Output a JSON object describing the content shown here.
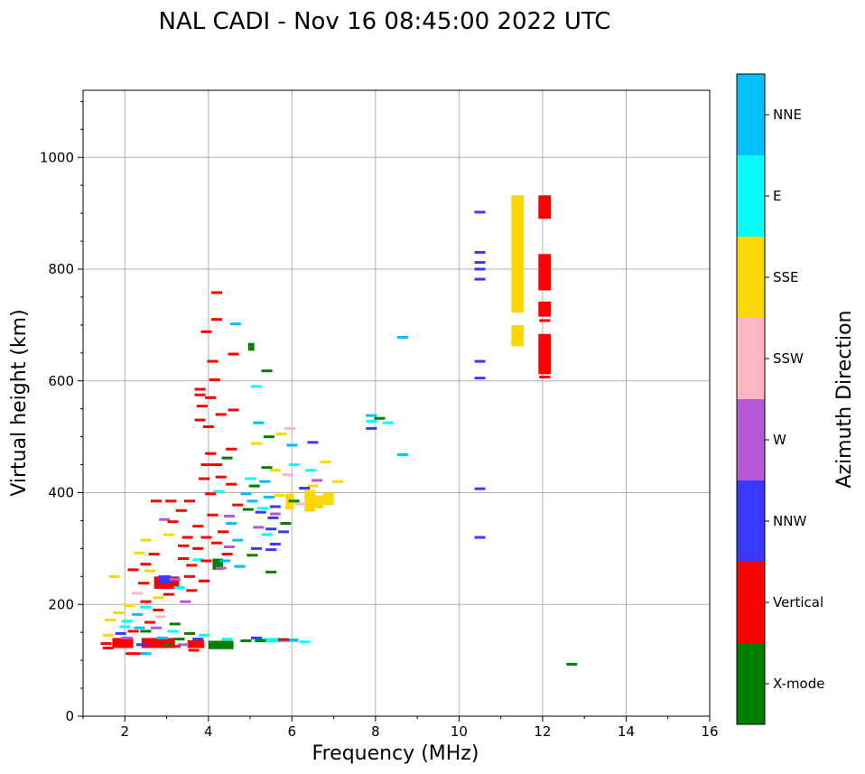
{
  "chart_data": {
    "type": "scatter",
    "title": "NAL CADI - Nov 16 08:45:00 2022 UTC",
    "xlabel": "Frequency (MHz)",
    "ylabel": "Virtual height (km)",
    "xlim": [
      1,
      16
    ],
    "ylim": [
      0,
      1120
    ],
    "xticks": [
      2,
      4,
      6,
      8,
      10,
      12,
      14,
      16
    ],
    "yticks": [
      0,
      200,
      400,
      600,
      800,
      1000
    ],
    "grid": true,
    "colorbar": {
      "title": "Azimuth Direction",
      "categories": [
        {
          "label": "X-mode",
          "color": "#008000"
        },
        {
          "label": "Vertical",
          "color": "#ff0000"
        },
        {
          "label": "NNW",
          "color": "#3a3aff"
        },
        {
          "label": "W",
          "color": "#b657d6"
        },
        {
          "label": "SSW",
          "color": "#ffb6c1"
        },
        {
          "label": "SSE",
          "color": "#ffd700"
        },
        {
          "label": "E",
          "color": "#00ffff"
        },
        {
          "label": "NNE",
          "color": "#00bfff"
        }
      ]
    },
    "blocks": [
      {
        "dir": "SSE",
        "x": [
          11.25,
          11.55
        ],
        "y": [
          722,
          932
        ]
      },
      {
        "dir": "SSE",
        "x": [
          11.25,
          11.55
        ],
        "y": [
          662,
          700
        ]
      },
      {
        "dir": "Vertical",
        "x": [
          11.9,
          12.2
        ],
        "y": [
          890,
          932
        ]
      },
      {
        "dir": "Vertical",
        "x": [
          11.9,
          12.2
        ],
        "y": [
          762,
          827
        ]
      },
      {
        "dir": "Vertical",
        "x": [
          11.9,
          12.2
        ],
        "y": [
          715,
          742
        ]
      },
      {
        "dir": "Vertical",
        "x": [
          11.9,
          12.2
        ],
        "y": [
          612,
          684
        ]
      },
      {
        "dir": "X-mode",
        "x": [
          4.0,
          4.6
        ],
        "y": [
          120,
          135
        ]
      },
      {
        "dir": "X-mode",
        "x": [
          4.1,
          4.35
        ],
        "y": [
          262,
          282
        ]
      },
      {
        "dir": "X-mode",
        "x": [
          4.95,
          5.1
        ],
        "y": [
          654,
          668
        ]
      },
      {
        "dir": "SSE",
        "x": [
          6.3,
          6.55
        ],
        "y": [
          366,
          405
        ]
      },
      {
        "dir": "SSE",
        "x": [
          6.55,
          6.75
        ],
        "y": [
          372,
          395
        ]
      },
      {
        "dir": "SSE",
        "x": [
          6.75,
          7.0
        ],
        "y": [
          378,
          400
        ]
      },
      {
        "dir": "SSE",
        "x": [
          5.85,
          6.05
        ],
        "y": [
          370,
          398
        ]
      },
      {
        "dir": "Vertical",
        "x": [
          2.7,
          3.3
        ],
        "y": [
          228,
          250
        ]
      },
      {
        "dir": "NNW",
        "x": [
          2.8,
          3.1
        ],
        "y": [
          238,
          252
        ]
      },
      {
        "dir": "Vertical",
        "x": [
          1.7,
          2.2
        ],
        "y": [
          122,
          140
        ]
      },
      {
        "dir": "Vertical",
        "x": [
          2.4,
          3.2
        ],
        "y": [
          122,
          140
        ]
      },
      {
        "dir": "Vertical",
        "x": [
          3.5,
          3.9
        ],
        "y": [
          122,
          136
        ]
      },
      {
        "dir": "E",
        "x": [
          5.1,
          5.9
        ],
        "y": [
          132,
          140
        ]
      },
      {
        "dir": "NNE",
        "x": [
          5.9,
          6.15
        ],
        "y": [
          133,
          139
        ]
      }
    ],
    "marks": [
      {
        "dir": "NNW",
        "x": 10.5,
        "y": 902
      },
      {
        "dir": "NNW",
        "x": 10.5,
        "y": 830
      },
      {
        "dir": "NNW",
        "x": 10.5,
        "y": 812
      },
      {
        "dir": "NNW",
        "x": 10.5,
        "y": 800
      },
      {
        "dir": "NNW",
        "x": 10.5,
        "y": 782
      },
      {
        "dir": "NNW",
        "x": 10.5,
        "y": 635
      },
      {
        "dir": "NNW",
        "x": 10.5,
        "y": 605
      },
      {
        "dir": "NNW",
        "x": 10.5,
        "y": 407
      },
      {
        "dir": "NNW",
        "x": 10.5,
        "y": 320
      },
      {
        "dir": "Vertical",
        "x": 12.05,
        "y": 708
      },
      {
        "dir": "Vertical",
        "x": 12.05,
        "y": 607
      },
      {
        "dir": "X-mode",
        "x": 12.7,
        "y": 93
      },
      {
        "dir": "NNE",
        "x": 8.65,
        "y": 678
      },
      {
        "dir": "NNE",
        "x": 8.65,
        "y": 468
      },
      {
        "dir": "NNE",
        "x": 7.9,
        "y": 538
      },
      {
        "dir": "E",
        "x": 7.9,
        "y": 528
      },
      {
        "dir": "E",
        "x": 8.3,
        "y": 525
      },
      {
        "dir": "NNW",
        "x": 7.9,
        "y": 515
      },
      {
        "dir": "X-mode",
        "x": 8.1,
        "y": 533
      },
      {
        "dir": "Vertical",
        "x": 4.2,
        "y": 758
      },
      {
        "dir": "Vertical",
        "x": 4.2,
        "y": 710
      },
      {
        "dir": "NNE",
        "x": 4.65,
        "y": 702
      },
      {
        "dir": "Vertical",
        "x": 3.95,
        "y": 688
      },
      {
        "dir": "Vertical",
        "x": 4.6,
        "y": 648
      },
      {
        "dir": "Vertical",
        "x": 4.1,
        "y": 635
      },
      {
        "dir": "X-mode",
        "x": 5.4,
        "y": 618
      },
      {
        "dir": "Vertical",
        "x": 4.15,
        "y": 602
      },
      {
        "dir": "E",
        "x": 5.15,
        "y": 590
      },
      {
        "dir": "Vertical",
        "x": 3.8,
        "y": 585
      },
      {
        "dir": "Vertical",
        "x": 3.8,
        "y": 575
      },
      {
        "dir": "Vertical",
        "x": 4.05,
        "y": 570
      },
      {
        "dir": "Vertical",
        "x": 3.85,
        "y": 555
      },
      {
        "dir": "Vertical",
        "x": 4.6,
        "y": 548
      },
      {
        "dir": "Vertical",
        "x": 4.3,
        "y": 540
      },
      {
        "dir": "Vertical",
        "x": 3.8,
        "y": 530
      },
      {
        "dir": "NNE",
        "x": 5.2,
        "y": 525
      },
      {
        "dir": "Vertical",
        "x": 4.0,
        "y": 518
      },
      {
        "dir": "SSW",
        "x": 5.95,
        "y": 515
      },
      {
        "dir": "SSE",
        "x": 5.75,
        "y": 505
      },
      {
        "dir": "X-mode",
        "x": 5.45,
        "y": 500
      },
      {
        "dir": "NNW",
        "x": 6.5,
        "y": 490
      },
      {
        "dir": "SSE",
        "x": 5.15,
        "y": 488
      },
      {
        "dir": "NNE",
        "x": 6.0,
        "y": 485
      },
      {
        "dir": "Vertical",
        "x": 4.55,
        "y": 478
      },
      {
        "dir": "Vertical",
        "x": 4.05,
        "y": 470
      },
      {
        "dir": "X-mode",
        "x": 4.45,
        "y": 462
      },
      {
        "dir": "SSE",
        "x": 6.8,
        "y": 455
      },
      {
        "dir": "Vertical",
        "x": 4.2,
        "y": 450
      },
      {
        "dir": "Vertical",
        "x": 3.95,
        "y": 450
      },
      {
        "dir": "E",
        "x": 6.05,
        "y": 450
      },
      {
        "dir": "X-mode",
        "x": 5.4,
        "y": 445
      },
      {
        "dir": "SSE",
        "x": 5.6,
        "y": 440
      },
      {
        "dir": "E",
        "x": 6.45,
        "y": 440
      },
      {
        "dir": "SSW",
        "x": 5.9,
        "y": 432
      },
      {
        "dir": "Vertical",
        "x": 4.3,
        "y": 428
      },
      {
        "dir": "Vertical",
        "x": 3.9,
        "y": 425
      },
      {
        "dir": "E",
        "x": 5.0,
        "y": 425
      },
      {
        "dir": "W",
        "x": 6.6,
        "y": 422
      },
      {
        "dir": "SSE",
        "x": 7.1,
        "y": 420
      },
      {
        "dir": "NNE",
        "x": 5.35,
        "y": 420
      },
      {
        "dir": "Vertical",
        "x": 4.55,
        "y": 415
      },
      {
        "dir": "SSE",
        "x": 6.5,
        "y": 412
      },
      {
        "dir": "X-mode",
        "x": 5.1,
        "y": 412
      },
      {
        "dir": "NNW",
        "x": 6.3,
        "y": 408
      },
      {
        "dir": "E",
        "x": 4.25,
        "y": 402
      },
      {
        "dir": "Vertical",
        "x": 4.05,
        "y": 398
      },
      {
        "dir": "NNE",
        "x": 4.9,
        "y": 398
      },
      {
        "dir": "SSE",
        "x": 5.7,
        "y": 395
      },
      {
        "dir": "NNE",
        "x": 5.45,
        "y": 392
      },
      {
        "dir": "Vertical",
        "x": 2.75,
        "y": 385
      },
      {
        "dir": "Vertical",
        "x": 3.1,
        "y": 385
      },
      {
        "dir": "Vertical",
        "x": 3.55,
        "y": 385
      },
      {
        "dir": "NNE",
        "x": 5.05,
        "y": 385
      },
      {
        "dir": "X-mode",
        "x": 6.05,
        "y": 385
      },
      {
        "dir": "SSW",
        "x": 6.2,
        "y": 380
      },
      {
        "dir": "Vertical",
        "x": 4.7,
        "y": 378
      },
      {
        "dir": "NNW",
        "x": 5.6,
        "y": 375
      },
      {
        "dir": "E",
        "x": 5.3,
        "y": 372
      },
      {
        "dir": "X-mode",
        "x": 4.95,
        "y": 370
      },
      {
        "dir": "Vertical",
        "x": 3.35,
        "y": 368
      },
      {
        "dir": "NNW",
        "x": 5.25,
        "y": 365
      },
      {
        "dir": "W",
        "x": 5.6,
        "y": 362
      },
      {
        "dir": "Vertical",
        "x": 4.1,
        "y": 360
      },
      {
        "dir": "W",
        "x": 4.5,
        "y": 358
      },
      {
        "dir": "NNW",
        "x": 5.55,
        "y": 355
      },
      {
        "dir": "W",
        "x": 2.95,
        "y": 352
      },
      {
        "dir": "Vertical",
        "x": 3.15,
        "y": 348
      },
      {
        "dir": "X-mode",
        "x": 5.85,
        "y": 345
      },
      {
        "dir": "NNE",
        "x": 4.55,
        "y": 345
      },
      {
        "dir": "Vertical",
        "x": 3.75,
        "y": 340
      },
      {
        "dir": "W",
        "x": 5.2,
        "y": 338
      },
      {
        "dir": "NNW",
        "x": 5.5,
        "y": 335
      },
      {
        "dir": "Vertical",
        "x": 4.35,
        "y": 330
      },
      {
        "dir": "NNW",
        "x": 5.8,
        "y": 330
      },
      {
        "dir": "SSE",
        "x": 3.05,
        "y": 325
      },
      {
        "dir": "E",
        "x": 5.4,
        "y": 325
      },
      {
        "dir": "Vertical",
        "x": 3.5,
        "y": 320
      },
      {
        "dir": "Vertical",
        "x": 3.95,
        "y": 320
      },
      {
        "dir": "SSE",
        "x": 2.5,
        "y": 315
      },
      {
        "dir": "NNE",
        "x": 4.7,
        "y": 315
      },
      {
        "dir": "Vertical",
        "x": 4.2,
        "y": 310
      },
      {
        "dir": "NNW",
        "x": 5.6,
        "y": 308
      },
      {
        "dir": "Vertical",
        "x": 3.4,
        "y": 305
      },
      {
        "dir": "W",
        "x": 4.5,
        "y": 303
      },
      {
        "dir": "Vertical",
        "x": 3.75,
        "y": 300
      },
      {
        "dir": "NNW",
        "x": 5.15,
        "y": 300
      },
      {
        "dir": "NNW",
        "x": 5.5,
        "y": 298
      },
      {
        "dir": "SSE",
        "x": 2.35,
        "y": 292
      },
      {
        "dir": "Vertical",
        "x": 2.7,
        "y": 290
      },
      {
        "dir": "Vertical",
        "x": 4.45,
        "y": 290
      },
      {
        "dir": "X-mode",
        "x": 5.05,
        "y": 288
      },
      {
        "dir": "Vertical",
        "x": 3.4,
        "y": 282
      },
      {
        "dir": "E",
        "x": 3.75,
        "y": 280
      },
      {
        "dir": "Vertical",
        "x": 3.95,
        "y": 278
      },
      {
        "dir": "NNE",
        "x": 4.4,
        "y": 278
      },
      {
        "dir": "Vertical",
        "x": 2.5,
        "y": 272
      },
      {
        "dir": "Vertical",
        "x": 3.6,
        "y": 270
      },
      {
        "dir": "W",
        "x": 4.3,
        "y": 265
      },
      {
        "dir": "NNE",
        "x": 4.75,
        "y": 268
      },
      {
        "dir": "Vertical",
        "x": 2.2,
        "y": 262
      },
      {
        "dir": "SSE",
        "x": 2.6,
        "y": 260
      },
      {
        "dir": "X-mode",
        "x": 5.5,
        "y": 258
      },
      {
        "dir": "SSE",
        "x": 1.75,
        "y": 250
      },
      {
        "dir": "Vertical",
        "x": 3.55,
        "y": 250
      },
      {
        "dir": "W",
        "x": 3.2,
        "y": 245
      },
      {
        "dir": "Vertical",
        "x": 3.9,
        "y": 242
      },
      {
        "dir": "Vertical",
        "x": 2.45,
        "y": 238
      },
      {
        "dir": "E",
        "x": 3.3,
        "y": 230
      },
      {
        "dir": "Vertical",
        "x": 3.6,
        "y": 225
      },
      {
        "dir": "SSW",
        "x": 2.3,
        "y": 220
      },
      {
        "dir": "Vertical",
        "x": 3.05,
        "y": 218
      },
      {
        "dir": "SSE",
        "x": 2.8,
        "y": 212
      },
      {
        "dir": "Vertical",
        "x": 2.5,
        "y": 205
      },
      {
        "dir": "W",
        "x": 3.45,
        "y": 205
      },
      {
        "dir": "SSE",
        "x": 2.1,
        "y": 198
      },
      {
        "dir": "E",
        "x": 2.5,
        "y": 195
      },
      {
        "dir": "Vertical",
        "x": 2.8,
        "y": 190
      },
      {
        "dir": "SSE",
        "x": 1.85,
        "y": 185
      },
      {
        "dir": "NNE",
        "x": 2.3,
        "y": 182
      },
      {
        "dir": "SSW",
        "x": 2.85,
        "y": 178
      },
      {
        "dir": "SSE",
        "x": 1.65,
        "y": 172
      },
      {
        "dir": "E",
        "x": 2.05,
        "y": 170
      },
      {
        "dir": "Vertical",
        "x": 2.6,
        "y": 168
      },
      {
        "dir": "X-mode",
        "x": 3.2,
        "y": 165
      },
      {
        "dir": "E",
        "x": 2.0,
        "y": 160
      },
      {
        "dir": "NNE",
        "x": 2.35,
        "y": 158
      },
      {
        "dir": "W",
        "x": 2.75,
        "y": 158
      },
      {
        "dir": "Vertical",
        "x": 2.2,
        "y": 152
      },
      {
        "dir": "X-mode",
        "x": 2.5,
        "y": 152
      },
      {
        "dir": "E",
        "x": 3.15,
        "y": 152
      },
      {
        "dir": "NNW",
        "x": 1.9,
        "y": 148
      },
      {
        "dir": "X-mode",
        "x": 3.55,
        "y": 148
      },
      {
        "dir": "E",
        "x": 3.9,
        "y": 145
      },
      {
        "dir": "SSE",
        "x": 1.6,
        "y": 145
      },
      {
        "dir": "W",
        "x": 2.05,
        "y": 140
      },
      {
        "dir": "NNE",
        "x": 2.9,
        "y": 140
      },
      {
        "dir": "X-mode",
        "x": 3.3,
        "y": 138
      },
      {
        "dir": "NNW",
        "x": 3.75,
        "y": 138
      },
      {
        "dir": "E",
        "x": 4.45,
        "y": 138
      },
      {
        "dir": "X-mode",
        "x": 4.9,
        "y": 135
      },
      {
        "dir": "X-mode",
        "x": 5.25,
        "y": 135
      },
      {
        "dir": "NNW",
        "x": 5.15,
        "y": 140
      },
      {
        "dir": "Vertical",
        "x": 5.8,
        "y": 137
      },
      {
        "dir": "E",
        "x": 6.3,
        "y": 133
      },
      {
        "dir": "Vertical",
        "x": 1.55,
        "y": 130
      },
      {
        "dir": "NNW",
        "x": 2.4,
        "y": 128
      },
      {
        "dir": "X-mode",
        "x": 3.05,
        "y": 128
      },
      {
        "dir": "W",
        "x": 3.4,
        "y": 128
      },
      {
        "dir": "Vertical",
        "x": 3.2,
        "y": 125
      },
      {
        "dir": "Vertical",
        "x": 1.6,
        "y": 122
      },
      {
        "dir": "X-mode",
        "x": 4.2,
        "y": 125
      },
      {
        "dir": "Vertical",
        "x": 2.15,
        "y": 112
      },
      {
        "dir": "Vertical",
        "x": 2.35,
        "y": 112
      },
      {
        "dir": "Vertical",
        "x": 3.65,
        "y": 118
      },
      {
        "dir": "NNE",
        "x": 2.5,
        "y": 112
      }
    ]
  }
}
